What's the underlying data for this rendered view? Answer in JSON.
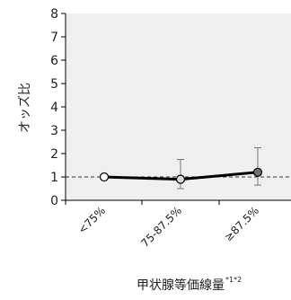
{
  "chart_data": {
    "type": "line",
    "ylabel": "オッズ比",
    "xlabel": "甲状腺等価線量",
    "xlabel_sup": "*1*2",
    "categories": [
      "<75%",
      "75-87.5%",
      "≥87.5%"
    ],
    "series": [
      {
        "values": [
          1.0,
          0.9,
          1.2
        ],
        "ci_low": [
          1.0,
          0.5,
          0.65
        ],
        "ci_high": [
          1.0,
          1.75,
          2.25
        ],
        "marker_fills": [
          "#ffffff",
          "#d9d9d9",
          "#707070"
        ]
      }
    ],
    "reference_line": 1,
    "ylim": [
      0,
      8
    ],
    "yticks": [
      "0",
      "1",
      "2",
      "3",
      "4",
      "5",
      "6",
      "7",
      "8"
    ],
    "plot_background": "#efefef",
    "line_color": "#000000",
    "grid": false,
    "legend": "none"
  }
}
